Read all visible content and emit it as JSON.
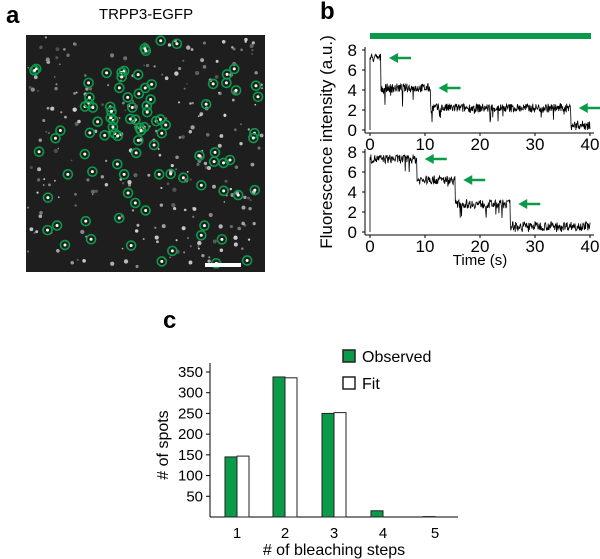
{
  "panels": {
    "a": "a",
    "b": "b",
    "c": "c"
  },
  "colors": {
    "accent": "#0b9a4a",
    "trace": "#000000",
    "image_bg": "#1e1e1e"
  },
  "panel_a": {
    "title": "TRPP3-EGFP",
    "type": "microscopy image with circled spots",
    "scale_bar": true
  },
  "chart_data": [
    {
      "type": "line",
      "panel": "b",
      "ylabel": "Fluorescence intensity (a.u.)",
      "xlabel": "Time (s)",
      "xlim": [
        0,
        40
      ],
      "ylim": [
        0,
        8
      ],
      "xticks": [
        0,
        10,
        20,
        30,
        40
      ],
      "yticks": [
        0,
        2,
        4,
        6,
        8
      ],
      "illumination_bar": [
        0,
        40
      ],
      "traces": [
        {
          "steps": [
            {
              "t0": 0,
              "t1": 2,
              "level": 7.2
            },
            {
              "t0": 2,
              "t1": 11,
              "level": 4.2
            },
            {
              "t0": 11,
              "t1": 36.5,
              "level": 2.2
            },
            {
              "t0": 36.5,
              "t1": 40,
              "level": 0.5
            }
          ],
          "arrows_at": [
            2,
            11,
            36.5
          ]
        },
        {
          "steps": [
            {
              "t0": 0,
              "t1": 8.5,
              "level": 7.3
            },
            {
              "t0": 8.5,
              "t1": 15.5,
              "level": 5.2
            },
            {
              "t0": 15.5,
              "t1": 25.5,
              "level": 2.8
            },
            {
              "t0": 25.5,
              "t1": 40,
              "level": 0.6
            }
          ],
          "arrows_at": [
            8.5,
            15.5,
            25.5
          ]
        }
      ]
    },
    {
      "type": "bar",
      "panel": "c",
      "categories": [
        "1",
        "2",
        "3",
        "4",
        "5"
      ],
      "series": [
        {
          "name": "Observed",
          "values": [
            145,
            338,
            250,
            15,
            1
          ],
          "color": "#0b9a4a"
        },
        {
          "name": "Fit",
          "values": [
            147,
            336,
            252,
            0,
            0
          ],
          "color": "#ffffff"
        }
      ],
      "xlabel": "# of bleaching steps",
      "ylabel": "# of spots",
      "ylim": [
        0,
        350
      ],
      "yticks": [
        50,
        100,
        150,
        200,
        250,
        300,
        350
      ],
      "legend": "top-right"
    }
  ]
}
